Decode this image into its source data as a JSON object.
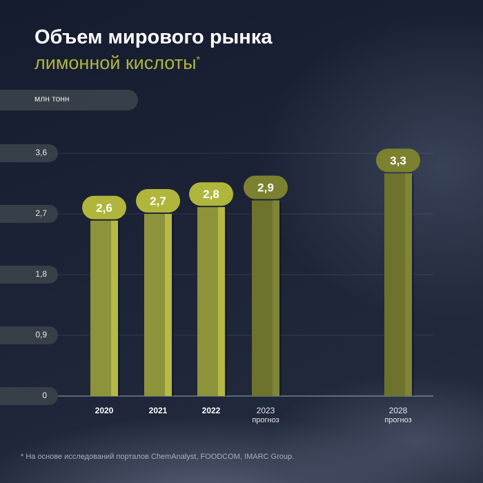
{
  "title": {
    "line1": "Объем мирового рынка",
    "line2": "лимонной кислоты",
    "asterisk": "*"
  },
  "chart_data": {
    "type": "bar",
    "title": "Объем мирового рынка лимонной кислоты*",
    "ylabel": "млн тонн",
    "xlabel": "",
    "ylim": [
      0,
      3.6
    ],
    "yticks": [
      "3,6",
      "2,7",
      "1,8",
      "0,9",
      "0"
    ],
    "ytick_values": [
      3.6,
      2.7,
      1.8,
      0.9,
      0
    ],
    "grid": true,
    "categories": [
      "2020",
      "2021",
      "2022",
      "2023",
      "2028"
    ],
    "category_sublabels": [
      "",
      "",
      "",
      "прогноз",
      "прогноз"
    ],
    "values": [
      2.6,
      2.7,
      2.8,
      2.9,
      3.3
    ],
    "value_labels": [
      "2,6",
      "2,7",
      "2,8",
      "2,9",
      "3,3"
    ],
    "forecast": [
      false,
      false,
      false,
      true,
      true
    ]
  },
  "colors": {
    "bar_actual": "#8d933a",
    "bar_actual_highlight": "#b4ba44",
    "bar_forecast": "#6d722d",
    "bar_forecast_highlight": "#7f8536",
    "label_actual": "#b0b63c",
    "label_forecast": "#7b812f"
  },
  "footnote": "*  На основе исследований порталов ChemAnalyst, FOODCOM, IMARC Group."
}
